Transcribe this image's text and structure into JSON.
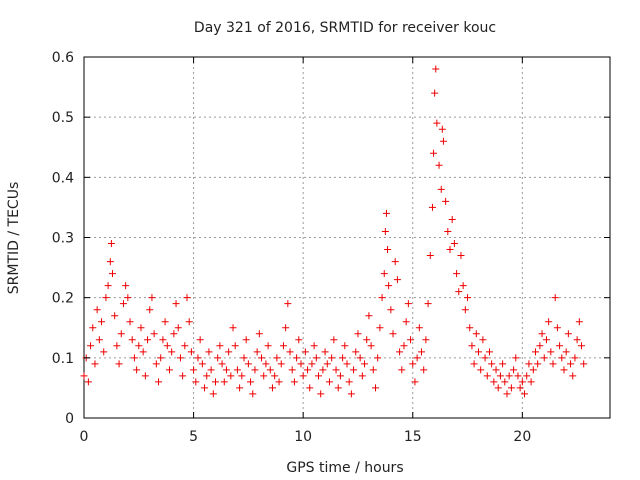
{
  "chart_data": {
    "type": "scatter",
    "title": "Day 321 of 2016, SRMTID for receiver kouc",
    "xlabel": "GPS time / hours",
    "ylabel": "SRMTID / TECUs",
    "xlim": [
      0,
      24
    ],
    "ylim": [
      0,
      0.6
    ],
    "x_ticks": [
      0,
      5,
      10,
      15,
      20
    ],
    "x_tick_labels": [
      "0",
      "5",
      "10",
      "15",
      "20"
    ],
    "y_ticks": [
      0,
      0.1,
      0.2,
      0.3,
      0.4,
      0.5,
      0.6
    ],
    "y_tick_labels": [
      "0",
      "0.1",
      "0.2",
      "0.3",
      "0.4",
      "0.5",
      "0.6"
    ],
    "grid": true,
    "marker": "+",
    "color": "#ee0000",
    "series": [
      {
        "name": "SRMTID",
        "points": [
          [
            0.0,
            0.07
          ],
          [
            0.1,
            0.1
          ],
          [
            0.2,
            0.06
          ],
          [
            0.3,
            0.12
          ],
          [
            0.4,
            0.15
          ],
          [
            0.5,
            0.09
          ],
          [
            0.6,
            0.18
          ],
          [
            0.7,
            0.13
          ],
          [
            0.8,
            0.16
          ],
          [
            0.9,
            0.11
          ],
          [
            1.0,
            0.2
          ],
          [
            1.1,
            0.22
          ],
          [
            1.2,
            0.26
          ],
          [
            1.25,
            0.29
          ],
          [
            1.3,
            0.24
          ],
          [
            1.4,
            0.17
          ],
          [
            1.5,
            0.12
          ],
          [
            1.6,
            0.09
          ],
          [
            1.7,
            0.14
          ],
          [
            1.8,
            0.19
          ],
          [
            1.9,
            0.22
          ],
          [
            2.0,
            0.2
          ],
          [
            2.1,
            0.16
          ],
          [
            2.2,
            0.13
          ],
          [
            2.3,
            0.1
          ],
          [
            2.4,
            0.08
          ],
          [
            2.5,
            0.12
          ],
          [
            2.6,
            0.15
          ],
          [
            2.7,
            0.11
          ],
          [
            2.8,
            0.07
          ],
          [
            2.9,
            0.13
          ],
          [
            3.0,
            0.18
          ],
          [
            3.1,
            0.2
          ],
          [
            3.2,
            0.14
          ],
          [
            3.3,
            0.09
          ],
          [
            3.4,
            0.06
          ],
          [
            3.5,
            0.1
          ],
          [
            3.6,
            0.13
          ],
          [
            3.7,
            0.16
          ],
          [
            3.8,
            0.12
          ],
          [
            3.9,
            0.08
          ],
          [
            4.0,
            0.11
          ],
          [
            4.1,
            0.14
          ],
          [
            4.2,
            0.19
          ],
          [
            4.3,
            0.15
          ],
          [
            4.4,
            0.1
          ],
          [
            4.5,
            0.07
          ],
          [
            4.6,
            0.12
          ],
          [
            4.7,
            0.2
          ],
          [
            4.8,
            0.16
          ],
          [
            4.9,
            0.11
          ],
          [
            5.0,
            0.08
          ],
          [
            5.1,
            0.06
          ],
          [
            5.2,
            0.1
          ],
          [
            5.3,
            0.13
          ],
          [
            5.4,
            0.09
          ],
          [
            5.5,
            0.05
          ],
          [
            5.6,
            0.07
          ],
          [
            5.7,
            0.11
          ],
          [
            5.8,
            0.08
          ],
          [
            5.9,
            0.04
          ],
          [
            6.0,
            0.06
          ],
          [
            6.1,
            0.1
          ],
          [
            6.2,
            0.12
          ],
          [
            6.3,
            0.09
          ],
          [
            6.4,
            0.06
          ],
          [
            6.5,
            0.08
          ],
          [
            6.6,
            0.11
          ],
          [
            6.7,
            0.07
          ],
          [
            6.8,
            0.15
          ],
          [
            6.9,
            0.12
          ],
          [
            7.0,
            0.08
          ],
          [
            7.1,
            0.05
          ],
          [
            7.2,
            0.07
          ],
          [
            7.3,
            0.1
          ],
          [
            7.4,
            0.13
          ],
          [
            7.5,
            0.09
          ],
          [
            7.6,
            0.06
          ],
          [
            7.7,
            0.04
          ],
          [
            7.8,
            0.08
          ],
          [
            7.9,
            0.11
          ],
          [
            8.0,
            0.14
          ],
          [
            8.1,
            0.1
          ],
          [
            8.2,
            0.07
          ],
          [
            8.3,
            0.09
          ],
          [
            8.4,
            0.12
          ],
          [
            8.5,
            0.08
          ],
          [
            8.6,
            0.05
          ],
          [
            8.7,
            0.07
          ],
          [
            8.8,
            0.1
          ],
          [
            8.9,
            0.06
          ],
          [
            9.0,
            0.09
          ],
          [
            9.1,
            0.12
          ],
          [
            9.2,
            0.15
          ],
          [
            9.3,
            0.19
          ],
          [
            9.4,
            0.11
          ],
          [
            9.5,
            0.08
          ],
          [
            9.6,
            0.06
          ],
          [
            9.7,
            0.1
          ],
          [
            9.8,
            0.13
          ],
          [
            9.9,
            0.09
          ],
          [
            10.0,
            0.07
          ],
          [
            10.1,
            0.11
          ],
          [
            10.2,
            0.08
          ],
          [
            10.3,
            0.05
          ],
          [
            10.4,
            0.09
          ],
          [
            10.5,
            0.12
          ],
          [
            10.6,
            0.1
          ],
          [
            10.7,
            0.07
          ],
          [
            10.8,
            0.04
          ],
          [
            10.9,
            0.08
          ],
          [
            11.0,
            0.11
          ],
          [
            11.1,
            0.09
          ],
          [
            11.2,
            0.06
          ],
          [
            11.3,
            0.1
          ],
          [
            11.4,
            0.13
          ],
          [
            11.5,
            0.08
          ],
          [
            11.6,
            0.05
          ],
          [
            11.7,
            0.07
          ],
          [
            11.8,
            0.1
          ],
          [
            11.9,
            0.12
          ],
          [
            12.0,
            0.09
          ],
          [
            12.1,
            0.06
          ],
          [
            12.2,
            0.04
          ],
          [
            12.3,
            0.08
          ],
          [
            12.4,
            0.11
          ],
          [
            12.5,
            0.14
          ],
          [
            12.6,
            0.1
          ],
          [
            12.7,
            0.07
          ],
          [
            12.8,
            0.09
          ],
          [
            12.9,
            0.13
          ],
          [
            13.0,
            0.17
          ],
          [
            13.1,
            0.12
          ],
          [
            13.2,
            0.08
          ],
          [
            13.3,
            0.05
          ],
          [
            13.4,
            0.1
          ],
          [
            13.5,
            0.15
          ],
          [
            13.6,
            0.2
          ],
          [
            13.7,
            0.24
          ],
          [
            13.75,
            0.31
          ],
          [
            13.8,
            0.34
          ],
          [
            13.85,
            0.28
          ],
          [
            13.9,
            0.22
          ],
          [
            14.0,
            0.18
          ],
          [
            14.1,
            0.14
          ],
          [
            14.2,
            0.26
          ],
          [
            14.3,
            0.23
          ],
          [
            14.4,
            0.11
          ],
          [
            14.5,
            0.08
          ],
          [
            14.6,
            0.12
          ],
          [
            14.7,
            0.16
          ],
          [
            14.8,
            0.19
          ],
          [
            14.9,
            0.13
          ],
          [
            15.0,
            0.09
          ],
          [
            15.1,
            0.06
          ],
          [
            15.2,
            0.1
          ],
          [
            15.3,
            0.15
          ],
          [
            15.4,
            0.11
          ],
          [
            15.5,
            0.08
          ],
          [
            15.6,
            0.13
          ],
          [
            15.7,
            0.19
          ],
          [
            15.8,
            0.27
          ],
          [
            15.9,
            0.35
          ],
          [
            15.95,
            0.44
          ],
          [
            16.0,
            0.54
          ],
          [
            16.05,
            0.58
          ],
          [
            16.1,
            0.49
          ],
          [
            16.2,
            0.42
          ],
          [
            16.3,
            0.38
          ],
          [
            16.35,
            0.48
          ],
          [
            16.4,
            0.46
          ],
          [
            16.5,
            0.36
          ],
          [
            16.6,
            0.31
          ],
          [
            16.7,
            0.28
          ],
          [
            16.8,
            0.33
          ],
          [
            16.9,
            0.29
          ],
          [
            17.0,
            0.24
          ],
          [
            17.1,
            0.21
          ],
          [
            17.2,
            0.27
          ],
          [
            17.3,
            0.22
          ],
          [
            17.4,
            0.18
          ],
          [
            17.5,
            0.2
          ],
          [
            17.6,
            0.15
          ],
          [
            17.7,
            0.12
          ],
          [
            17.8,
            0.09
          ],
          [
            17.9,
            0.14
          ],
          [
            18.0,
            0.11
          ],
          [
            18.1,
            0.08
          ],
          [
            18.2,
            0.13
          ],
          [
            18.3,
            0.1
          ],
          [
            18.4,
            0.07
          ],
          [
            18.5,
            0.11
          ],
          [
            18.6,
            0.09
          ],
          [
            18.7,
            0.06
          ],
          [
            18.8,
            0.08
          ],
          [
            18.9,
            0.05
          ],
          [
            19.0,
            0.07
          ],
          [
            19.1,
            0.09
          ],
          [
            19.2,
            0.06
          ],
          [
            19.3,
            0.04
          ],
          [
            19.4,
            0.07
          ],
          [
            19.5,
            0.05
          ],
          [
            19.6,
            0.08
          ],
          [
            19.7,
            0.1
          ],
          [
            19.8,
            0.07
          ],
          [
            19.9,
            0.05
          ],
          [
            20.0,
            0.06
          ],
          [
            20.1,
            0.04
          ],
          [
            20.2,
            0.07
          ],
          [
            20.3,
            0.09
          ],
          [
            20.4,
            0.06
          ],
          [
            20.5,
            0.08
          ],
          [
            20.6,
            0.11
          ],
          [
            20.7,
            0.09
          ],
          [
            20.8,
            0.12
          ],
          [
            20.9,
            0.14
          ],
          [
            21.0,
            0.1
          ],
          [
            21.1,
            0.13
          ],
          [
            21.2,
            0.16
          ],
          [
            21.3,
            0.11
          ],
          [
            21.4,
            0.09
          ],
          [
            21.5,
            0.2
          ],
          [
            21.6,
            0.15
          ],
          [
            21.7,
            0.12
          ],
          [
            21.8,
            0.1
          ],
          [
            21.9,
            0.08
          ],
          [
            22.0,
            0.11
          ],
          [
            22.1,
            0.14
          ],
          [
            22.2,
            0.09
          ],
          [
            22.3,
            0.07
          ],
          [
            22.4,
            0.1
          ],
          [
            22.5,
            0.13
          ],
          [
            22.6,
            0.16
          ],
          [
            22.7,
            0.12
          ],
          [
            22.8,
            0.09
          ]
        ]
      }
    ]
  }
}
